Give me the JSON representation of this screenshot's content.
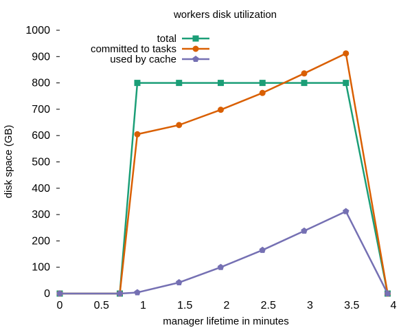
{
  "chart_data": {
    "type": "line",
    "title": "workers disk utilization",
    "xlabel": "manager lifetime in minutes",
    "ylabel": "disk space (GB)",
    "xlim": [
      0,
      4
    ],
    "ylim": [
      0,
      1000
    ],
    "xticks": [
      0,
      0.5,
      1,
      1.5,
      2,
      2.5,
      3,
      3.5,
      4
    ],
    "xtick_labels": [
      "0",
      "0.5",
      "1",
      "1.5",
      "2",
      "2.5",
      "3",
      "3.5",
      "4"
    ],
    "yticks": [
      0,
      100,
      200,
      300,
      400,
      500,
      600,
      700,
      800,
      900,
      1000
    ],
    "ytick_labels": [
      "0",
      "100",
      "200",
      "300",
      "400",
      "500",
      "600",
      "700",
      "800",
      "900",
      "1000"
    ],
    "grid": false,
    "legend_position": "top-left",
    "series": [
      {
        "name": "total",
        "color": "#1b9e77",
        "marker": "square",
        "x": [
          0,
          0.72,
          0.93,
          1.43,
          1.93,
          2.43,
          2.93,
          3.43,
          3.93
        ],
        "y": [
          0,
          0,
          800,
          800,
          800,
          800,
          800,
          800,
          0
        ]
      },
      {
        "name": "committed to tasks",
        "color": "#d95f02",
        "marker": "circle",
        "x": [
          0,
          0.72,
          0.93,
          1.43,
          1.93,
          2.43,
          2.93,
          3.43,
          3.93
        ],
        "y": [
          0,
          0,
          605,
          640,
          698,
          762,
          836,
          912,
          0
        ]
      },
      {
        "name": "used by cache",
        "color": "#7570b3",
        "marker": "pentagon",
        "x": [
          0,
          0.72,
          0.93,
          1.43,
          1.93,
          2.43,
          2.93,
          3.43,
          3.93
        ],
        "y": [
          0,
          0,
          4,
          42,
          100,
          165,
          238,
          312,
          0
        ]
      }
    ]
  }
}
